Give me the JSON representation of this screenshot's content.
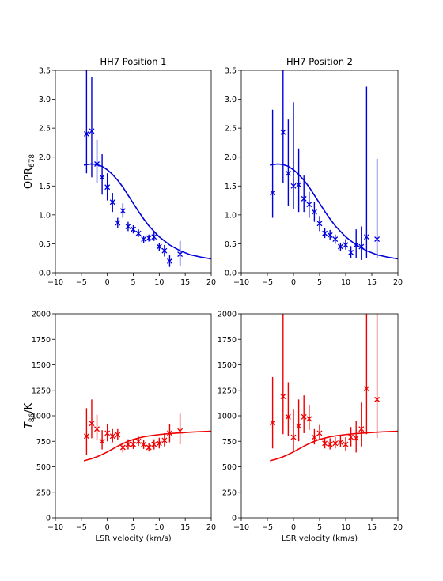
{
  "chart_data": [
    {
      "type": "scatter",
      "title": "HH7 Position 1",
      "xlabel": "",
      "ylabel": "OPR",
      "ylabel_sub": "678",
      "xlim": [
        -10,
        20
      ],
      "ylim": [
        0,
        3.5
      ],
      "xticks": [
        "−10",
        "−5",
        "0",
        "5",
        "10",
        "15",
        "20"
      ],
      "yticks": [
        "0.0",
        "0.5",
        "1.0",
        "1.5",
        "2.0",
        "2.5",
        "3.0",
        "3.5"
      ],
      "color": "#0000dd",
      "points": [
        {
          "x": -4,
          "y": 2.4,
          "lo": 1.72,
          "hi": 3.5
        },
        {
          "x": -3,
          "y": 2.45,
          "lo": 1.65,
          "hi": 3.38
        },
        {
          "x": -2,
          "y": 1.88,
          "lo": 1.55,
          "hi": 2.3
        },
        {
          "x": -1,
          "y": 1.65,
          "lo": 1.35,
          "hi": 2.05
        },
        {
          "x": 0,
          "y": 1.48,
          "lo": 1.25,
          "hi": 1.72
        },
        {
          "x": 1,
          "y": 1.22,
          "lo": 1.05,
          "hi": 1.38
        },
        {
          "x": 2,
          "y": 0.86,
          "lo": 0.78,
          "hi": 0.95
        },
        {
          "x": 3,
          "y": 1.07,
          "lo": 0.95,
          "hi": 1.2
        },
        {
          "x": 4,
          "y": 0.8,
          "lo": 0.72,
          "hi": 0.88
        },
        {
          "x": 5,
          "y": 0.75,
          "lo": 0.68,
          "hi": 0.82
        },
        {
          "x": 6,
          "y": 0.68,
          "lo": 0.62,
          "hi": 0.75
        },
        {
          "x": 7,
          "y": 0.58,
          "lo": 0.52,
          "hi": 0.64
        },
        {
          "x": 8,
          "y": 0.6,
          "lo": 0.54,
          "hi": 0.66
        },
        {
          "x": 9,
          "y": 0.62,
          "lo": 0.55,
          "hi": 0.7
        },
        {
          "x": 10,
          "y": 0.45,
          "lo": 0.38,
          "hi": 0.52
        },
        {
          "x": 11,
          "y": 0.38,
          "lo": 0.28,
          "hi": 0.48
        },
        {
          "x": 12,
          "y": 0.2,
          "lo": 0.1,
          "hi": 0.3
        },
        {
          "x": 14,
          "y": 0.32,
          "lo": 0.12,
          "hi": 0.55
        }
      ],
      "model": {
        "x": [
          -4.5,
          -4,
          -3,
          -2,
          -1,
          0,
          1,
          2,
          3,
          4,
          5,
          6,
          7,
          8,
          10,
          12,
          14,
          16,
          18,
          20
        ],
        "y": [
          1.86,
          1.87,
          1.88,
          1.87,
          1.84,
          1.78,
          1.7,
          1.6,
          1.48,
          1.34,
          1.2,
          1.06,
          0.93,
          0.81,
          0.62,
          0.48,
          0.38,
          0.31,
          0.27,
          0.24
        ]
      }
    },
    {
      "type": "scatter",
      "title": "HH7 Position 2",
      "xlabel": "",
      "ylabel": "",
      "xlim": [
        -10,
        20
      ],
      "ylim": [
        0,
        3.5
      ],
      "xticks": [
        "−10",
        "−5",
        "0",
        "5",
        "10",
        "15",
        "20"
      ],
      "yticks": [
        "0.0",
        "0.5",
        "1.0",
        "1.5",
        "2.0",
        "2.5",
        "3.0",
        "3.5"
      ],
      "color": "#0000dd",
      "points": [
        {
          "x": -4,
          "y": 1.38,
          "lo": 0.95,
          "hi": 2.82
        },
        {
          "x": -2,
          "y": 2.43,
          "lo": 1.55,
          "hi": 3.5
        },
        {
          "x": -1,
          "y": 1.72,
          "lo": 1.15,
          "hi": 2.65
        },
        {
          "x": 0,
          "y": 1.5,
          "lo": 1.1,
          "hi": 2.95
        },
        {
          "x": 1,
          "y": 1.52,
          "lo": 1.05,
          "hi": 2.15
        },
        {
          "x": 2,
          "y": 1.28,
          "lo": 1.05,
          "hi": 1.68
        },
        {
          "x": 3,
          "y": 1.18,
          "lo": 0.95,
          "hi": 1.4
        },
        {
          "x": 4,
          "y": 1.05,
          "lo": 0.88,
          "hi": 1.22
        },
        {
          "x": 5,
          "y": 0.85,
          "lo": 0.72,
          "hi": 0.98
        },
        {
          "x": 6,
          "y": 0.68,
          "lo": 0.6,
          "hi": 0.78
        },
        {
          "x": 7,
          "y": 0.65,
          "lo": 0.56,
          "hi": 0.74
        },
        {
          "x": 8,
          "y": 0.58,
          "lo": 0.5,
          "hi": 0.66
        },
        {
          "x": 9,
          "y": 0.45,
          "lo": 0.38,
          "hi": 0.52
        },
        {
          "x": 10,
          "y": 0.48,
          "lo": 0.4,
          "hi": 0.58
        },
        {
          "x": 11,
          "y": 0.35,
          "lo": 0.25,
          "hi": 0.46
        },
        {
          "x": 12,
          "y": 0.48,
          "lo": 0.25,
          "hi": 0.75
        },
        {
          "x": 13,
          "y": 0.45,
          "lo": 0.22,
          "hi": 0.8
        },
        {
          "x": 14,
          "y": 0.62,
          "lo": 0.25,
          "hi": 3.22
        },
        {
          "x": 16,
          "y": 0.58,
          "lo": 0.25,
          "hi": 1.97
        }
      ],
      "model": {
        "x": [
          -4.5,
          -4,
          -3,
          -2,
          -1,
          0,
          1,
          2,
          3,
          4,
          5,
          6,
          7,
          8,
          10,
          12,
          14,
          16,
          18,
          20
        ],
        "y": [
          1.86,
          1.87,
          1.88,
          1.87,
          1.84,
          1.78,
          1.7,
          1.6,
          1.48,
          1.34,
          1.2,
          1.06,
          0.93,
          0.81,
          0.62,
          0.48,
          0.38,
          0.31,
          0.27,
          0.24
        ]
      }
    },
    {
      "type": "scatter",
      "title": "",
      "xlabel": "LSR velocity (km/s)",
      "ylabel": "T",
      "ylabel_sub": "86",
      "ylabel_suffix": "/K",
      "xlim": [
        -10,
        20
      ],
      "ylim": [
        0,
        2000
      ],
      "xticks": [
        "−10",
        "−5",
        "0",
        "5",
        "10",
        "15",
        "20"
      ],
      "yticks": [
        "0",
        "250",
        "500",
        "750",
        "1000",
        "1250",
        "1500",
        "1750",
        "2000"
      ],
      "color": "#ee0000",
      "points": [
        {
          "x": -4,
          "y": 800,
          "lo": 620,
          "hi": 1075
        },
        {
          "x": -3,
          "y": 925,
          "lo": 780,
          "hi": 1160
        },
        {
          "x": -2,
          "y": 870,
          "lo": 760,
          "hi": 1010
        },
        {
          "x": -1,
          "y": 750,
          "lo": 670,
          "hi": 860
        },
        {
          "x": 0,
          "y": 830,
          "lo": 750,
          "hi": 920
        },
        {
          "x": 1,
          "y": 800,
          "lo": 740,
          "hi": 870
        },
        {
          "x": 2,
          "y": 815,
          "lo": 760,
          "hi": 870
        },
        {
          "x": 3,
          "y": 690,
          "lo": 640,
          "hi": 740
        },
        {
          "x": 4,
          "y": 720,
          "lo": 670,
          "hi": 770
        },
        {
          "x": 5,
          "y": 720,
          "lo": 675,
          "hi": 765
        },
        {
          "x": 6,
          "y": 750,
          "lo": 705,
          "hi": 795
        },
        {
          "x": 7,
          "y": 720,
          "lo": 675,
          "hi": 765
        },
        {
          "x": 8,
          "y": 690,
          "lo": 650,
          "hi": 735
        },
        {
          "x": 9,
          "y": 720,
          "lo": 670,
          "hi": 770
        },
        {
          "x": 10,
          "y": 730,
          "lo": 680,
          "hi": 785
        },
        {
          "x": 11,
          "y": 760,
          "lo": 700,
          "hi": 830
        },
        {
          "x": 12,
          "y": 830,
          "lo": 740,
          "hi": 920
        },
        {
          "x": 14,
          "y": 850,
          "lo": 720,
          "hi": 1020
        }
      ],
      "model": {
        "x": [
          -4.5,
          -4,
          -3,
          -2,
          -1,
          0,
          1,
          2,
          3,
          4,
          5,
          6,
          7,
          8,
          10,
          12,
          14,
          16,
          18,
          20
        ],
        "y": [
          558,
          566,
          580,
          598,
          620,
          646,
          674,
          702,
          728,
          750,
          768,
          782,
          794,
          803,
          816,
          826,
          833,
          840,
          845,
          848
        ]
      }
    },
    {
      "type": "scatter",
      "title": "",
      "xlabel": "LSR velocity (km/s)",
      "ylabel": "",
      "xlim": [
        -10,
        20
      ],
      "ylim": [
        0,
        2000
      ],
      "xticks": [
        "−10",
        "−5",
        "0",
        "5",
        "10",
        "15",
        "20"
      ],
      "yticks": [
        "0",
        "250",
        "500",
        "750",
        "1000",
        "1250",
        "1500",
        "1750",
        "2000"
      ],
      "color": "#ee0000",
      "points": [
        {
          "x": -4,
          "y": 930,
          "lo": 680,
          "hi": 1380
        },
        {
          "x": -2,
          "y": 1190,
          "lo": 820,
          "hi": 2000
        },
        {
          "x": -1,
          "y": 990,
          "lo": 800,
          "hi": 1330
        },
        {
          "x": 0,
          "y": 790,
          "lo": 650,
          "hi": 1060
        },
        {
          "x": 1,
          "y": 900,
          "lo": 750,
          "hi": 1160
        },
        {
          "x": 2,
          "y": 990,
          "lo": 830,
          "hi": 1200
        },
        {
          "x": 3,
          "y": 970,
          "lo": 860,
          "hi": 1110
        },
        {
          "x": 4,
          "y": 790,
          "lo": 720,
          "hi": 870
        },
        {
          "x": 5,
          "y": 830,
          "lo": 760,
          "hi": 910
        },
        {
          "x": 6,
          "y": 730,
          "lo": 680,
          "hi": 780
        },
        {
          "x": 7,
          "y": 720,
          "lo": 670,
          "hi": 780
        },
        {
          "x": 8,
          "y": 730,
          "lo": 680,
          "hi": 790
        },
        {
          "x": 9,
          "y": 740,
          "lo": 690,
          "hi": 800
        },
        {
          "x": 10,
          "y": 720,
          "lo": 660,
          "hi": 790
        },
        {
          "x": 11,
          "y": 790,
          "lo": 700,
          "hi": 890
        },
        {
          "x": 12,
          "y": 780,
          "lo": 640,
          "hi": 950
        },
        {
          "x": 13,
          "y": 870,
          "lo": 700,
          "hi": 1130
        },
        {
          "x": 14,
          "y": 1265,
          "lo": 820,
          "hi": 2000
        },
        {
          "x": 16,
          "y": 1160,
          "lo": 780,
          "hi": 2000
        }
      ],
      "model": {
        "x": [
          -4.5,
          -4,
          -3,
          -2,
          -1,
          0,
          1,
          2,
          3,
          4,
          5,
          6,
          7,
          8,
          10,
          12,
          14,
          16,
          18,
          20
        ],
        "y": [
          558,
          566,
          580,
          598,
          620,
          646,
          674,
          702,
          728,
          750,
          768,
          782,
          794,
          803,
          816,
          826,
          833,
          840,
          845,
          848
        ]
      }
    }
  ]
}
